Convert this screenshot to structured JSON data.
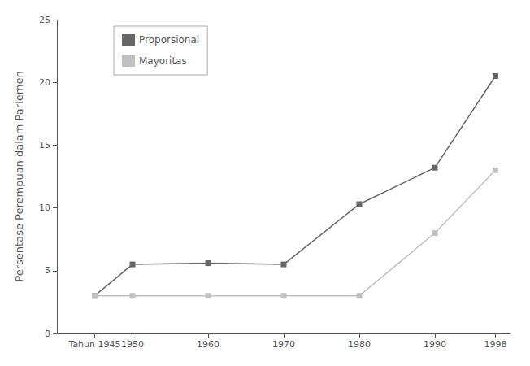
{
  "chart_data": {
    "type": "line",
    "ylabel": "Persentase Perempuan dalam Parlemen",
    "x": [
      1945,
      1950,
      1960,
      1970,
      1980,
      1990,
      1998
    ],
    "series": [
      {
        "name": "Proporsional",
        "color": "#666666",
        "values": [
          3.0,
          5.5,
          5.6,
          5.5,
          10.3,
          13.2,
          20.5
        ]
      },
      {
        "name": "Mayoritas",
        "color": "#c0c0c0",
        "values": [
          3.0,
          3.0,
          3.0,
          3.0,
          3.0,
          8.0,
          13.0
        ]
      }
    ],
    "xlim": [
      1940,
      2000
    ],
    "xticks": [
      {
        "value": 1945,
        "label": "Tahun 1945"
      },
      1950,
      1960,
      1970,
      1980,
      1990,
      1998
    ],
    "ylim": [
      0,
      25
    ],
    "yticks": [
      0,
      5,
      10,
      15,
      20,
      25
    ],
    "grid": false,
    "legend": "upper left",
    "marker": "square"
  }
}
